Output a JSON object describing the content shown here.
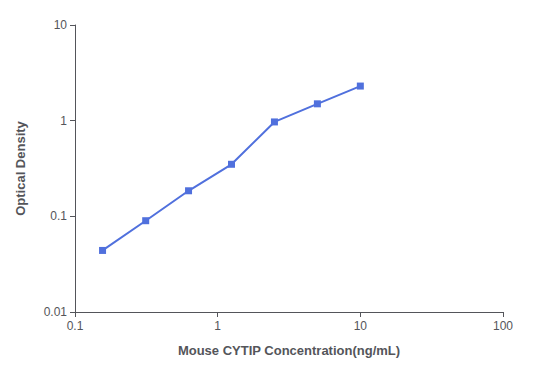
{
  "chart_data": {
    "type": "line",
    "x": [
      0.156,
      0.313,
      0.625,
      1.25,
      2.5,
      5.0,
      10.0
    ],
    "values": [
      0.044,
      0.09,
      0.185,
      0.35,
      0.97,
      1.5,
      2.3
    ],
    "xlabel": "Mouse CYTIP Concentration(ng/mL)",
    "ylabel": "Optical Density",
    "xlim": [
      0.1,
      100
    ],
    "ylim": [
      0.01,
      10
    ],
    "xticks": [
      0.1,
      1,
      10,
      100
    ],
    "yticks": [
      0.01,
      0.1,
      1,
      10
    ],
    "log": true,
    "grid": false,
    "marker": "square"
  }
}
